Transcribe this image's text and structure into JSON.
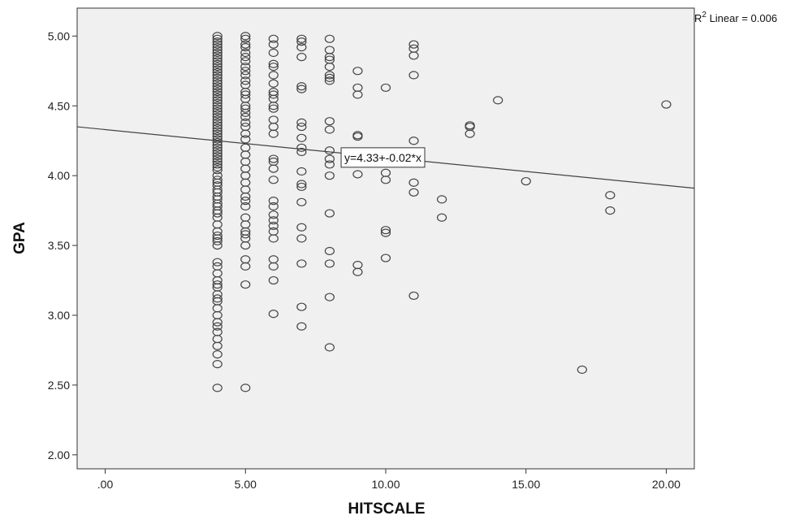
{
  "chart_data": {
    "type": "scatter",
    "title": "",
    "xlabel": "HITSCALE",
    "ylabel": "GPA",
    "xlim": [
      -1,
      21
    ],
    "ylim": [
      1.9,
      5.2
    ],
    "x_ticks": [
      0,
      5,
      10,
      15,
      20
    ],
    "x_tick_labels": [
      ".00",
      "5.00",
      "10.00",
      "15.00",
      "20.00"
    ],
    "y_ticks": [
      2.0,
      2.5,
      3.0,
      3.5,
      4.0,
      4.5,
      5.0
    ],
    "y_tick_labels": [
      "2.00",
      "2.50",
      "3.00",
      "3.50",
      "4.00",
      "4.50",
      "5.00"
    ],
    "grid": false,
    "fit_line": {
      "intercept": 4.33,
      "slope": -0.02,
      "label": "y=4.33+-0.02*x",
      "label_anchor_x": 9.9,
      "label_anchor_y": 4.13
    },
    "r2": {
      "prefix": "R",
      "superscript": "2",
      "text": " Linear = 0.006"
    },
    "points": [
      [
        4,
        5.0
      ],
      [
        4,
        4.98
      ],
      [
        4,
        4.96
      ],
      [
        4,
        4.94
      ],
      [
        4,
        4.92
      ],
      [
        4,
        4.9
      ],
      [
        4,
        4.88
      ],
      [
        4,
        4.86
      ],
      [
        4,
        4.84
      ],
      [
        4,
        4.82
      ],
      [
        4,
        4.8
      ],
      [
        4,
        4.78
      ],
      [
        4,
        4.76
      ],
      [
        4,
        4.74
      ],
      [
        4,
        4.72
      ],
      [
        4,
        4.7
      ],
      [
        4,
        4.68
      ],
      [
        4,
        4.66
      ],
      [
        4,
        4.64
      ],
      [
        4,
        4.62
      ],
      [
        4,
        4.6
      ],
      [
        4,
        4.58
      ],
      [
        4,
        4.56
      ],
      [
        4,
        4.54
      ],
      [
        4,
        4.52
      ],
      [
        4,
        4.5
      ],
      [
        4,
        4.48
      ],
      [
        4,
        4.46
      ],
      [
        4,
        4.44
      ],
      [
        4,
        4.42
      ],
      [
        4,
        4.4
      ],
      [
        4,
        4.38
      ],
      [
        4,
        4.36
      ],
      [
        4,
        4.34
      ],
      [
        4,
        4.32
      ],
      [
        4,
        4.3
      ],
      [
        4,
        4.28
      ],
      [
        4,
        4.26
      ],
      [
        4,
        4.24
      ],
      [
        4,
        4.22
      ],
      [
        4,
        4.2
      ],
      [
        4,
        4.18
      ],
      [
        4,
        4.16
      ],
      [
        4,
        4.14
      ],
      [
        4,
        4.12
      ],
      [
        4,
        4.1
      ],
      [
        4,
        4.08
      ],
      [
        4,
        4.06
      ],
      [
        4,
        4.04
      ],
      [
        4,
        4.0
      ],
      [
        4,
        3.97
      ],
      [
        4,
        3.95
      ],
      [
        4,
        3.93
      ],
      [
        4,
        3.9
      ],
      [
        4,
        3.88
      ],
      [
        4,
        3.85
      ],
      [
        4,
        3.83
      ],
      [
        4,
        3.8
      ],
      [
        4,
        3.78
      ],
      [
        4,
        3.75
      ],
      [
        4,
        3.73
      ],
      [
        4,
        3.7
      ],
      [
        4,
        3.65
      ],
      [
        4,
        3.6
      ],
      [
        4,
        3.57
      ],
      [
        4,
        3.55
      ],
      [
        4,
        3.53
      ],
      [
        4,
        3.5
      ],
      [
        4,
        3.38
      ],
      [
        4,
        3.35
      ],
      [
        4,
        3.3
      ],
      [
        4,
        3.25
      ],
      [
        4,
        3.22
      ],
      [
        4,
        3.2
      ],
      [
        4,
        3.15
      ],
      [
        4,
        3.12
      ],
      [
        4,
        3.1
      ],
      [
        4,
        3.05
      ],
      [
        4,
        3.0
      ],
      [
        4,
        2.95
      ],
      [
        4,
        2.92
      ],
      [
        4,
        2.88
      ],
      [
        4,
        2.83
      ],
      [
        4,
        2.78
      ],
      [
        4,
        2.72
      ],
      [
        4,
        2.65
      ],
      [
        4,
        2.48
      ],
      [
        5,
        5.0
      ],
      [
        5,
        4.98
      ],
      [
        5,
        4.94
      ],
      [
        5,
        4.92
      ],
      [
        5,
        4.88
      ],
      [
        5,
        4.85
      ],
      [
        5,
        4.82
      ],
      [
        5,
        4.78
      ],
      [
        5,
        4.75
      ],
      [
        5,
        4.72
      ],
      [
        5,
        4.68
      ],
      [
        5,
        4.65
      ],
      [
        5,
        4.6
      ],
      [
        5,
        4.58
      ],
      [
        5,
        4.55
      ],
      [
        5,
        4.5
      ],
      [
        5,
        4.48
      ],
      [
        5,
        4.45
      ],
      [
        5,
        4.42
      ],
      [
        5,
        4.38
      ],
      [
        5,
        4.35
      ],
      [
        5,
        4.3
      ],
      [
        5,
        4.26
      ],
      [
        5,
        4.2
      ],
      [
        5,
        4.15
      ],
      [
        5,
        4.1
      ],
      [
        5,
        4.05
      ],
      [
        5,
        4.0
      ],
      [
        5,
        3.95
      ],
      [
        5,
        3.9
      ],
      [
        5,
        3.85
      ],
      [
        5,
        3.82
      ],
      [
        5,
        3.78
      ],
      [
        5,
        3.7
      ],
      [
        5,
        3.65
      ],
      [
        5,
        3.6
      ],
      [
        5,
        3.58
      ],
      [
        5,
        3.55
      ],
      [
        5,
        3.5
      ],
      [
        5,
        3.4
      ],
      [
        5,
        3.35
      ],
      [
        5,
        3.22
      ],
      [
        5,
        2.48
      ],
      [
        6,
        4.98
      ],
      [
        6,
        4.94
      ],
      [
        6,
        4.88
      ],
      [
        6,
        4.8
      ],
      [
        6,
        4.78
      ],
      [
        6,
        4.72
      ],
      [
        6,
        4.66
      ],
      [
        6,
        4.6
      ],
      [
        6,
        4.58
      ],
      [
        6,
        4.55
      ],
      [
        6,
        4.5
      ],
      [
        6,
        4.48
      ],
      [
        6,
        4.4
      ],
      [
        6,
        4.35
      ],
      [
        6,
        4.3
      ],
      [
        6,
        4.12
      ],
      [
        6,
        4.1
      ],
      [
        6,
        4.05
      ],
      [
        6,
        3.97
      ],
      [
        6,
        3.82
      ],
      [
        6,
        3.78
      ],
      [
        6,
        3.72
      ],
      [
        6,
        3.68
      ],
      [
        6,
        3.64
      ],
      [
        6,
        3.6
      ],
      [
        6,
        3.55
      ],
      [
        6,
        3.4
      ],
      [
        6,
        3.35
      ],
      [
        6,
        3.25
      ],
      [
        6,
        3.01
      ],
      [
        7,
        4.98
      ],
      [
        7,
        4.96
      ],
      [
        7,
        4.92
      ],
      [
        7,
        4.85
      ],
      [
        7,
        4.64
      ],
      [
        7,
        4.62
      ],
      [
        7,
        4.38
      ],
      [
        7,
        4.35
      ],
      [
        7,
        4.27
      ],
      [
        7,
        4.2
      ],
      [
        7,
        4.17
      ],
      [
        7,
        4.03
      ],
      [
        7,
        3.94
      ],
      [
        7,
        3.92
      ],
      [
        7,
        3.81
      ],
      [
        7,
        3.63
      ],
      [
        7,
        3.55
      ],
      [
        7,
        3.37
      ],
      [
        7,
        3.06
      ],
      [
        7,
        2.92
      ],
      [
        8,
        4.98
      ],
      [
        8,
        4.9
      ],
      [
        8,
        4.85
      ],
      [
        8,
        4.83
      ],
      [
        8,
        4.78
      ],
      [
        8,
        4.72
      ],
      [
        8,
        4.7
      ],
      [
        8,
        4.68
      ],
      [
        8,
        4.39
      ],
      [
        8,
        4.33
      ],
      [
        8,
        4.18
      ],
      [
        8,
        4.12
      ],
      [
        8,
        4.08
      ],
      [
        8,
        4.0
      ],
      [
        8,
        3.73
      ],
      [
        8,
        3.46
      ],
      [
        8,
        3.37
      ],
      [
        8,
        3.13
      ],
      [
        8,
        2.77
      ],
      [
        9,
        4.75
      ],
      [
        9,
        4.63
      ],
      [
        9,
        4.58
      ],
      [
        9,
        4.29
      ],
      [
        9,
        4.28
      ],
      [
        9,
        4.01
      ],
      [
        9,
        3.36
      ],
      [
        9,
        3.31
      ],
      [
        10,
        4.63
      ],
      [
        10,
        4.02
      ],
      [
        10,
        3.97
      ],
      [
        10,
        3.61
      ],
      [
        10,
        3.59
      ],
      [
        10,
        3.41
      ],
      [
        11,
        4.94
      ],
      [
        11,
        4.91
      ],
      [
        11,
        4.86
      ],
      [
        11,
        4.72
      ],
      [
        11,
        4.25
      ],
      [
        11,
        3.95
      ],
      [
        11,
        3.88
      ],
      [
        11,
        3.14
      ],
      [
        12,
        3.83
      ],
      [
        12,
        3.7
      ],
      [
        13,
        4.36
      ],
      [
        13,
        4.35
      ],
      [
        13,
        4.3
      ],
      [
        14,
        4.54
      ],
      [
        15,
        3.96
      ],
      [
        17,
        2.61
      ],
      [
        18,
        3.86
      ],
      [
        18,
        3.75
      ],
      [
        20,
        4.51
      ]
    ]
  }
}
